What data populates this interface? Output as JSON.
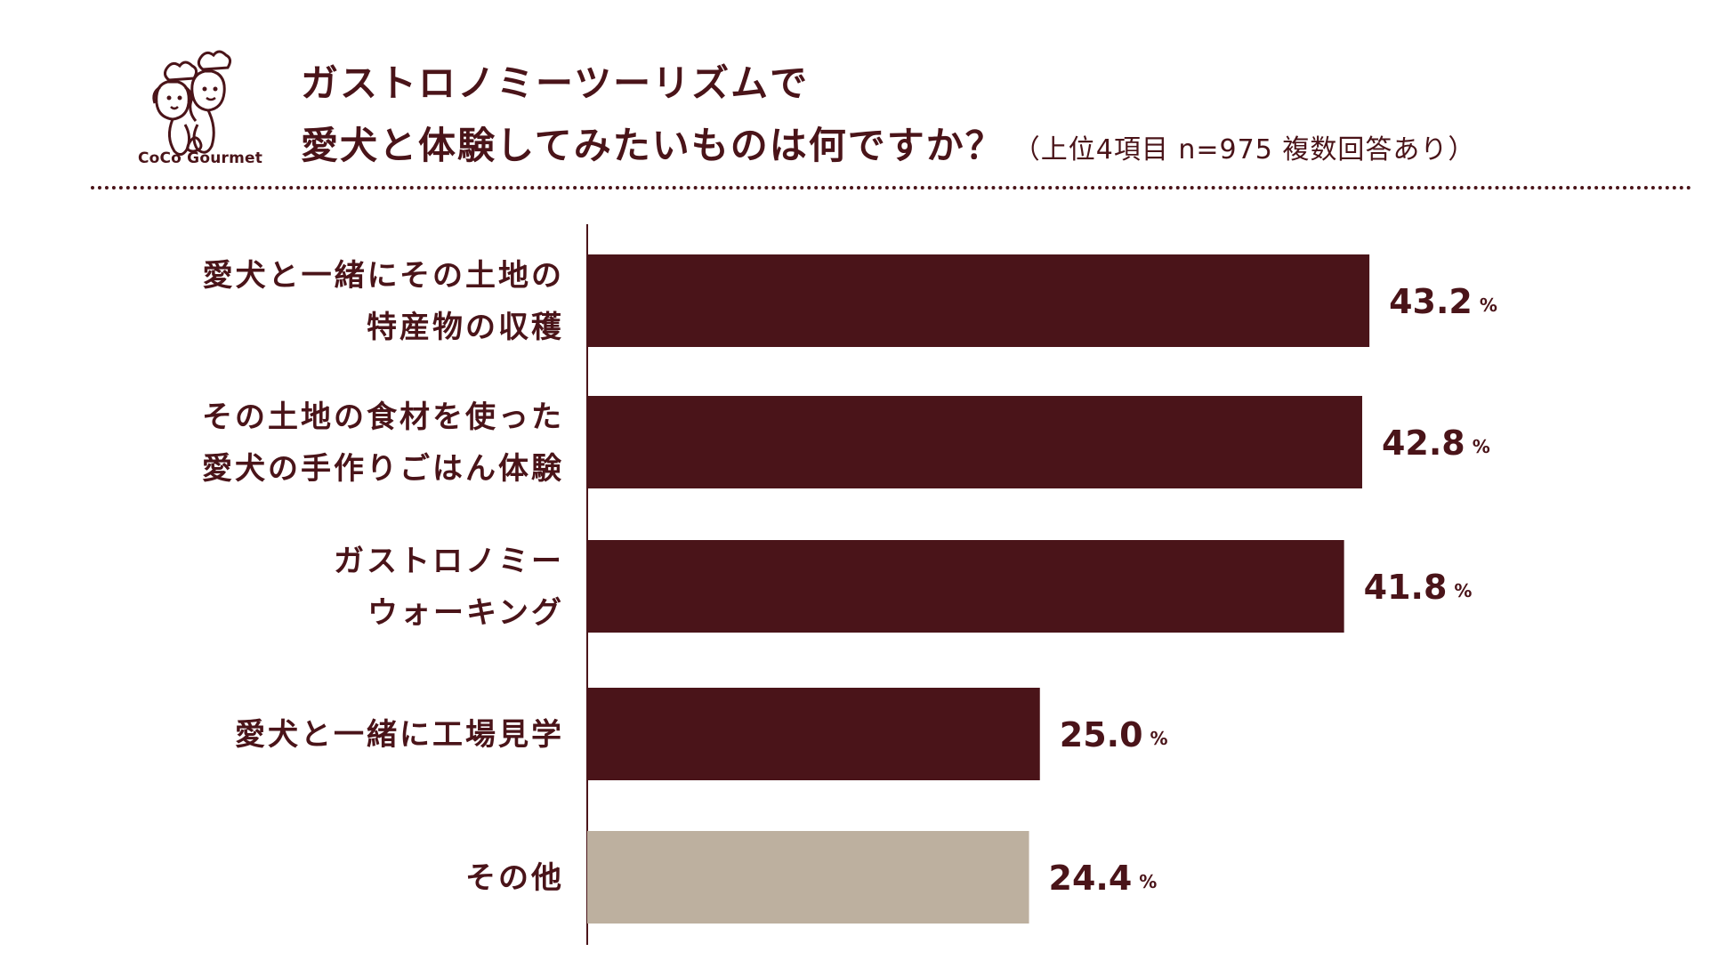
{
  "brand": {
    "logo_text": "CoCo Gourmet"
  },
  "title": {
    "line1": "ガストロノミーツーリズムで",
    "line2": "愛犬と体験してみたいものは何ですか？",
    "subtitle": "（上位4項目  n=975  複数回答あり）"
  },
  "colors": {
    "primary": "#4a1419",
    "other": "#bdb09f"
  },
  "chart_data": {
    "type": "bar",
    "orientation": "horizontal",
    "categories": [
      [
        "愛犬と一緒にその土地の",
        "特産物の収穫"
      ],
      [
        "その土地の食材を使った",
        "愛犬の手作りごはん体験"
      ],
      [
        "ガストロノミー",
        "ウォーキング"
      ],
      [
        "愛犬と一緒に工場見学"
      ],
      [
        "その他"
      ]
    ],
    "values": [
      43.2,
      42.8,
      41.8,
      25.0,
      24.4
    ],
    "value_labels": [
      "43.2",
      "42.8",
      "41.8",
      "25.0",
      "24.4"
    ],
    "unit": "%",
    "bar_colors": [
      "#4a1419",
      "#4a1419",
      "#4a1419",
      "#4a1419",
      "#bdb09f"
    ],
    "xlim": [
      0,
      50
    ],
    "grid": false,
    "legend": "none"
  }
}
